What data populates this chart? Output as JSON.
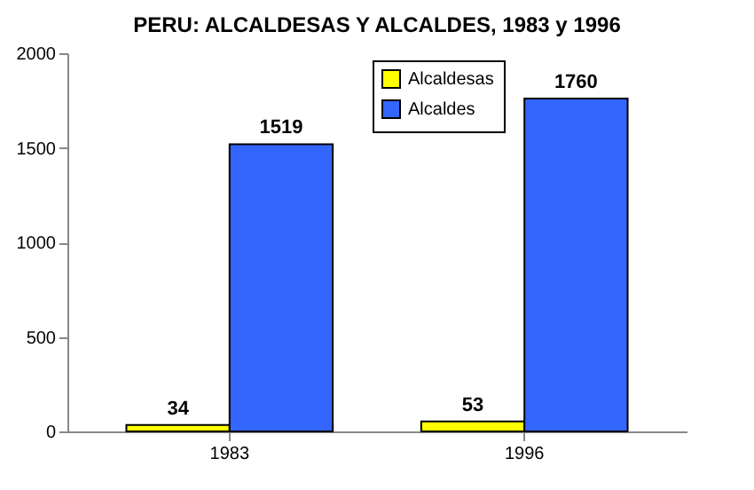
{
  "chart_data": {
    "type": "bar",
    "title": "PERU: ALCALDESAS Y ALCALDES, 1983 y 1996",
    "categories": [
      "1983",
      "1996"
    ],
    "series": [
      {
        "name": "Alcaldesas",
        "color": "#ffff00",
        "values": [
          34,
          53
        ]
      },
      {
        "name": "Alcaldes",
        "color": "#3366ff",
        "values": [
          1519,
          1760
        ]
      }
    ],
    "ylim": [
      0,
      2000
    ],
    "yticks": [
      0,
      500,
      1000,
      1500,
      2000
    ],
    "data_labels": true,
    "legend": "top right",
    "grid": false
  }
}
